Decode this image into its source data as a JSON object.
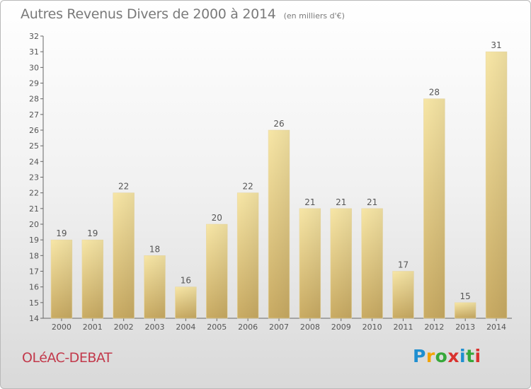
{
  "header": {
    "title": "Autres Revenus Divers de 2000 à 2014",
    "unit": "(en milliers d'€)"
  },
  "footer": {
    "town": "OLéAC-DEBAT",
    "logo": {
      "letters": [
        "P",
        "r",
        "o",
        "x",
        "i",
        "t",
        "i"
      ]
    }
  },
  "colors": {
    "bar_light": "#f6e3a0",
    "bar_dark": "#c8aa62",
    "town": "#c2394b",
    "text": "#7a7a7a"
  },
  "chart_data": {
    "type": "bar",
    "title": "Autres Revenus Divers de 2000 à 2014",
    "subtitle": "(en milliers d'€)",
    "categories": [
      "2000",
      "2001",
      "2002",
      "2003",
      "2004",
      "2005",
      "2006",
      "2007",
      "2008",
      "2009",
      "2010",
      "2011",
      "2012",
      "2013",
      "2014"
    ],
    "values": [
      19,
      19,
      22,
      18,
      16,
      20,
      22,
      26,
      21,
      21,
      21,
      17,
      28,
      15,
      31
    ],
    "ylim": [
      14,
      32
    ],
    "yticks": [
      14,
      15,
      16,
      17,
      18,
      19,
      20,
      21,
      22,
      23,
      24,
      25,
      26,
      27,
      28,
      29,
      30,
      31,
      32
    ],
    "xlabel": "",
    "ylabel": "",
    "grid": false,
    "data_labels": true
  }
}
